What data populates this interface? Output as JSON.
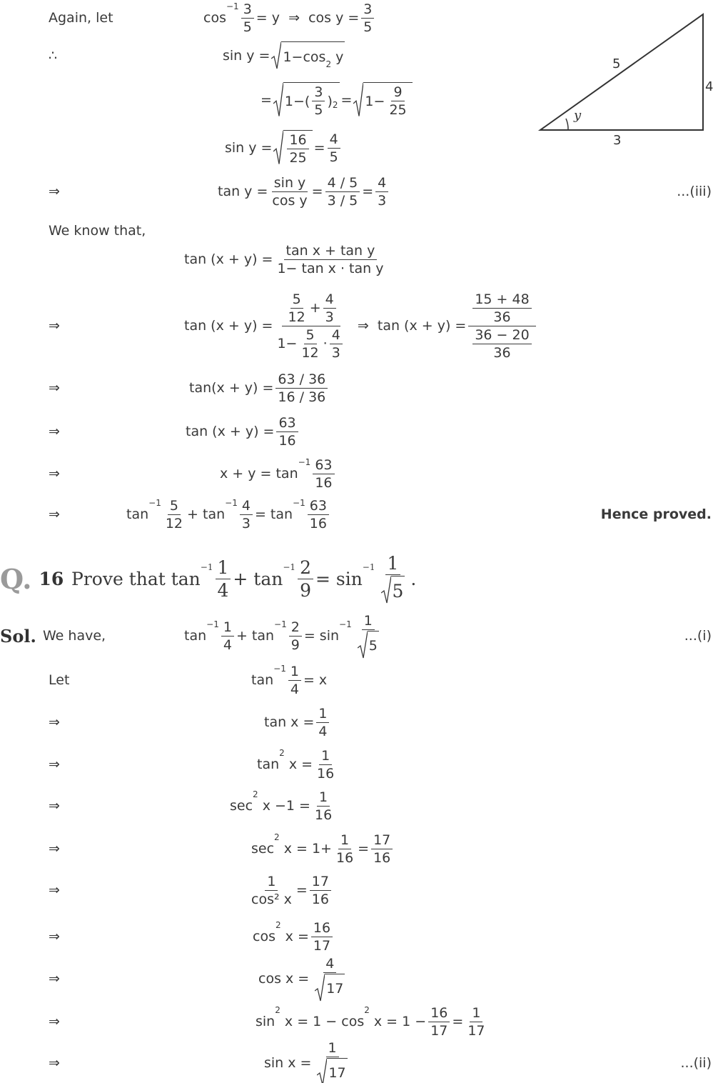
{
  "rows": [
    {
      "lead": "Again, let",
      "parts": [
        "cos",
        {
          "sup": "−1"
        },
        {
          "frac": [
            [
              "3"
            ],
            [
              "5"
            ]
          ]
        },
        "= y  ⇒  cos y =",
        {
          "frac": [
            [
              "3"
            ],
            [
              "5"
            ]
          ]
        }
      ]
    },
    {
      "lead": "∴",
      "parts": [
        "sin y =",
        {
          "sqrt": [
            "1−cos",
            {
              "sup": "2"
            },
            " y"
          ]
        }
      ]
    },
    {
      "parts": [
        "=",
        {
          "sqrt": [
            "1−(",
            {
              "frac": [
                [
                  "3"
                ],
                [
                  "5"
                ]
              ]
            },
            ")",
            {
              "sup": "2"
            }
          ]
        },
        "=",
        {
          "sqrt": [
            "1−",
            {
              "frac": [
                [
                  "9"
                ],
                [
                  "25"
                ]
              ]
            }
          ]
        }
      ]
    },
    {
      "parts": [
        "sin y =",
        {
          "sqrt": [
            {
              "frac": [
                [
                  "16"
                ],
                [
                  "25"
                ]
              ]
            }
          ]
        },
        "=",
        {
          "frac": [
            [
              "4"
            ],
            [
              "5"
            ]
          ]
        }
      ]
    },
    {
      "lead": "⇒",
      "parts": [
        "tan y =",
        {
          "frac": [
            [
              "sin y"
            ],
            [
              "cos y"
            ]
          ]
        },
        "=",
        {
          "frac": [
            [
              "4 / 5"
            ],
            [
              "3 / 5"
            ]
          ]
        },
        "=",
        {
          "frac": [
            [
              "4"
            ],
            [
              "3"
            ]
          ]
        }
      ],
      "tag": "...(iii)"
    },
    {
      "lead": "We know that,",
      "parts": []
    },
    {
      "parts": [
        "tan (x + y) =",
        {
          "frac": [
            [
              "tan x + tan y"
            ],
            [
              "1− tan x · tan y"
            ]
          ]
        }
      ]
    },
    {
      "lead": "⇒",
      "parts": [
        "tan (x + y) =",
        {
          "frac": [
            [
              {
                "frac": [
                  [
                    "5"
                  ],
                  [
                    "12"
                  ]
                ]
              },
              "+",
              {
                "frac": [
                  [
                    "4"
                  ],
                  [
                    "3"
                  ]
                ]
              }
            ],
            [
              "1−",
              {
                "frac": [
                  [
                    "5"
                  ],
                  [
                    "12"
                  ]
                ]
              },
              "·",
              {
                "frac": [
                  [
                    "4"
                  ],
                  [
                    "3"
                  ]
                ]
              }
            ]
          ]
        },
        "  ⇒  tan (x + y) =",
        {
          "frac": [
            [
              {
                "frac": [
                  [
                    "15 + 48"
                  ],
                  [
                    "36"
                  ]
                ]
              }
            ],
            [
              {
                "frac": [
                  [
                    "36 − 20"
                  ],
                  [
                    "36"
                  ]
                ]
              }
            ]
          ]
        }
      ]
    },
    {
      "lead": "⇒",
      "parts": [
        "tan(x + y) =",
        {
          "frac": [
            [
              "63 / 36"
            ],
            [
              "16 / 36"
            ]
          ]
        }
      ]
    },
    {
      "lead": "⇒",
      "parts": [
        "tan (x + y) =",
        {
          "frac": [
            [
              "63"
            ],
            [
              "16"
            ]
          ]
        }
      ]
    },
    {
      "lead": "⇒",
      "parts": [
        "x + y = tan",
        {
          "sup": "−1"
        },
        {
          "frac": [
            [
              "63"
            ],
            [
              "16"
            ]
          ]
        }
      ]
    },
    {
      "lead": "⇒",
      "parts": [
        "tan",
        {
          "sup": "−1"
        },
        {
          "frac": [
            [
              "5"
            ],
            [
              "12"
            ]
          ]
        },
        "+ tan",
        {
          "sup": "−1"
        },
        {
          "frac": [
            [
              "4"
            ],
            [
              "3"
            ]
          ]
        },
        "= tan",
        {
          "sup": "−1"
        },
        {
          "frac": [
            [
              "63"
            ],
            [
              "16"
            ]
          ]
        }
      ],
      "note": "Hence proved."
    },
    {
      "label": "Q.",
      "number": "16",
      "parts": [
        "Prove that tan",
        {
          "sup": "−1"
        },
        {
          "frac": [
            [
              "1"
            ],
            [
              "4"
            ]
          ]
        },
        "+ tan",
        {
          "sup": "−1"
        },
        {
          "frac": [
            [
              "2"
            ],
            [
              "9"
            ]
          ]
        },
        "= sin",
        {
          "sup": "−1"
        },
        {
          "frac": [
            [
              "1"
            ],
            [
              {
                "sqrt": [
                  "5"
                ]
              }
            ]
          ]
        },
        "."
      ]
    },
    {
      "label": "Sol.",
      "lead": "We have,",
      "parts": [
        "tan",
        {
          "sup": "−1"
        },
        {
          "frac": [
            [
              "1"
            ],
            [
              "4"
            ]
          ]
        },
        "+ tan",
        {
          "sup": "−1"
        },
        {
          "frac": [
            [
              "2"
            ],
            [
              "9"
            ]
          ]
        },
        "= sin",
        {
          "sup": "−1"
        },
        {
          "frac": [
            [
              "1"
            ],
            [
              {
                "sqrt": [
                  "5"
                ]
              }
            ]
          ]
        }
      ],
      "tag": "...(i)"
    },
    {
      "lead": "Let",
      "parts": [
        "tan",
        {
          "sup": "−1"
        },
        {
          "frac": [
            [
              "1"
            ],
            [
              "4"
            ]
          ]
        },
        "= x"
      ]
    },
    {
      "lead": "⇒",
      "parts": [
        "tan x =",
        {
          "frac": [
            [
              "1"
            ],
            [
              "4"
            ]
          ]
        }
      ]
    },
    {
      "lead": "⇒",
      "parts": [
        "tan",
        {
          "sup": "2"
        },
        " x =",
        {
          "frac": [
            [
              "1"
            ],
            [
              "16"
            ]
          ]
        }
      ]
    },
    {
      "lead": "⇒",
      "parts": [
        "sec",
        {
          "sup": "2"
        },
        " x −1 =",
        {
          "frac": [
            [
              "1"
            ],
            [
              "16"
            ]
          ]
        }
      ]
    },
    {
      "lead": "⇒",
      "parts": [
        "sec",
        {
          "sup": "2"
        },
        " x = 1+",
        {
          "frac": [
            [
              "1"
            ],
            [
              "16"
            ]
          ]
        },
        "=",
        {
          "frac": [
            [
              "17"
            ],
            [
              "16"
            ]
          ]
        }
      ]
    },
    {
      "lead": "⇒",
      "parts": [
        {
          "frac": [
            [
              "1"
            ],
            [
              "cos² x"
            ]
          ]
        },
        "=",
        {
          "frac": [
            [
              "17"
            ],
            [
              "16"
            ]
          ]
        }
      ]
    },
    {
      "lead": "⇒",
      "parts": [
        "cos",
        {
          "sup": "2"
        },
        " x =",
        {
          "frac": [
            [
              "16"
            ],
            [
              "17"
            ]
          ]
        }
      ]
    },
    {
      "lead": "⇒",
      "parts": [
        "cos x =",
        {
          "frac": [
            [
              "4"
            ],
            [
              {
                "sqrt": [
                  "17"
                ]
              }
            ]
          ]
        }
      ]
    },
    {
      "lead": "⇒",
      "parts": [
        "sin",
        {
          "sup": "2"
        },
        " x = 1 − cos",
        {
          "sup": "2"
        },
        " x = 1 −",
        {
          "frac": [
            [
              "16"
            ],
            [
              "17"
            ]
          ]
        },
        "=",
        {
          "frac": [
            [
              "1"
            ],
            [
              "17"
            ]
          ]
        }
      ]
    },
    {
      "lead": "⇒",
      "parts": [
        "sin x =",
        {
          "frac": [
            [
              "1"
            ],
            [
              {
                "sqrt": [
                  "17"
                ]
              }
            ]
          ]
        }
      ],
      "tag": "...(ii)"
    }
  ],
  "figure": {
    "hypotenuse": "5",
    "opposite": "4",
    "adjacent": "3",
    "angle": "y"
  }
}
